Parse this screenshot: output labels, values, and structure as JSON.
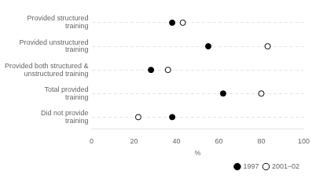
{
  "chart_data": {
    "type": "dot",
    "orientation": "horizontal",
    "categories": [
      "Provided structured\ntraining",
      "Provided unstructured\ntraining",
      "Provided both structured &\nunstructured training",
      "Total provided\ntraining",
      "Did not provide\ntraining"
    ],
    "series": [
      {
        "name": "1997",
        "color": "#000000",
        "marker": "circle",
        "values": [
          38,
          55,
          28,
          62,
          38
        ]
      },
      {
        "name": "2001–02",
        "color": "#000000",
        "marker": "open_circle",
        "values": [
          43,
          83,
          36,
          80,
          22
        ]
      }
    ],
    "xlabel": "%",
    "xlim": [
      0,
      100
    ],
    "xticks": [
      0,
      20,
      40,
      60,
      80,
      100
    ],
    "grid": "y",
    "legend": "lower right"
  }
}
